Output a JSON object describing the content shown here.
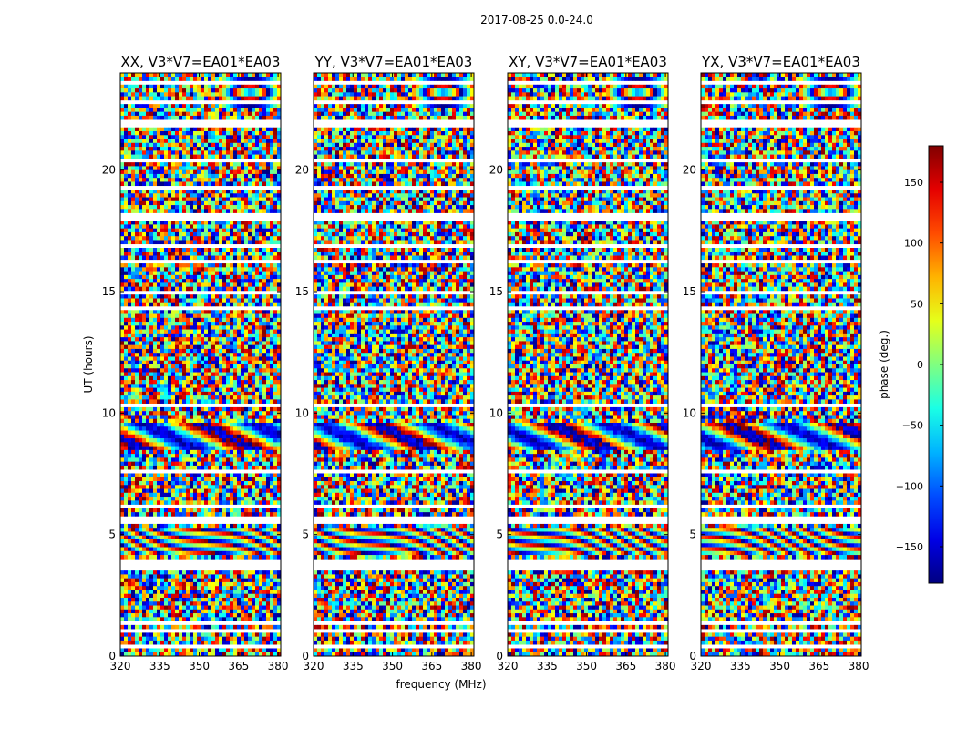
{
  "figure": {
    "suptitle": "2017-08-25 0.0-24.0"
  },
  "chart_data": {
    "type": "heatmap",
    "title": "2017-08-25 0.0-24.0",
    "xlabel": "frequency (MHz)",
    "ylabel": "UT (hours)",
    "xlim": [
      320,
      381
    ],
    "ylim": [
      0,
      24
    ],
    "xticks": [
      320,
      335,
      350,
      365,
      380
    ],
    "yticks": [
      0,
      5,
      10,
      15,
      20
    ],
    "panels": [
      {
        "title": "XX, V3*V7=EA01*EA03",
        "pol": "XX"
      },
      {
        "title": "YY, V3*V7=EA01*EA03",
        "pol": "YY"
      },
      {
        "title": "XY, V3*V7=EA01*EA03",
        "pol": "XY"
      },
      {
        "title": "YX, V3*V7=EA01*EA03",
        "pol": "YX"
      }
    ],
    "colorbar": {
      "label": "phase (deg.)",
      "range": [
        -180,
        180
      ],
      "ticks": [
        150,
        100,
        50,
        0,
        -50,
        -100,
        -150
      ],
      "tick_labels": [
        "150",
        "100",
        "50",
        "0",
        "−50",
        "−100",
        "−150"
      ],
      "colormap": "jet"
    },
    "flagged_bands_ut": [
      [
        0.3,
        0.4
      ],
      [
        1.35,
        1.5
      ],
      [
        1.0,
        1.05
      ],
      [
        3.45,
        4.05
      ],
      [
        5.45,
        5.8
      ],
      [
        6.15,
        6.25
      ],
      [
        7.6,
        7.65
      ],
      [
        8.95,
        9.0
      ],
      [
        9.7,
        9.75
      ],
      [
        10.25,
        10.35
      ],
      [
        11.0,
        11.1
      ],
      [
        12.0,
        12.05
      ],
      [
        12.25,
        12.3
      ],
      [
        13.05,
        13.1
      ],
      [
        14.3,
        14.35
      ],
      [
        14.9,
        15.0
      ],
      [
        15.5,
        15.55
      ],
      [
        16.2,
        16.3
      ],
      [
        16.8,
        16.95
      ],
      [
        17.95,
        18.3
      ],
      [
        19.2,
        19.3
      ],
      [
        19.95,
        20.05
      ],
      [
        20.3,
        20.4
      ],
      [
        20.9,
        21.0
      ],
      [
        21.8,
        22.0
      ],
      [
        22.75,
        22.9
      ],
      [
        23.55,
        23.65
      ]
    ],
    "fringe_regions": [
      {
        "ut": [
          4.1,
          5.3
        ],
        "pattern": "curved"
      },
      {
        "ut": [
          8.5,
          9.6
        ],
        "pattern": "wavy"
      },
      {
        "ut": [
          22.6,
          23.8
        ],
        "pattern": "rings"
      }
    ]
  }
}
